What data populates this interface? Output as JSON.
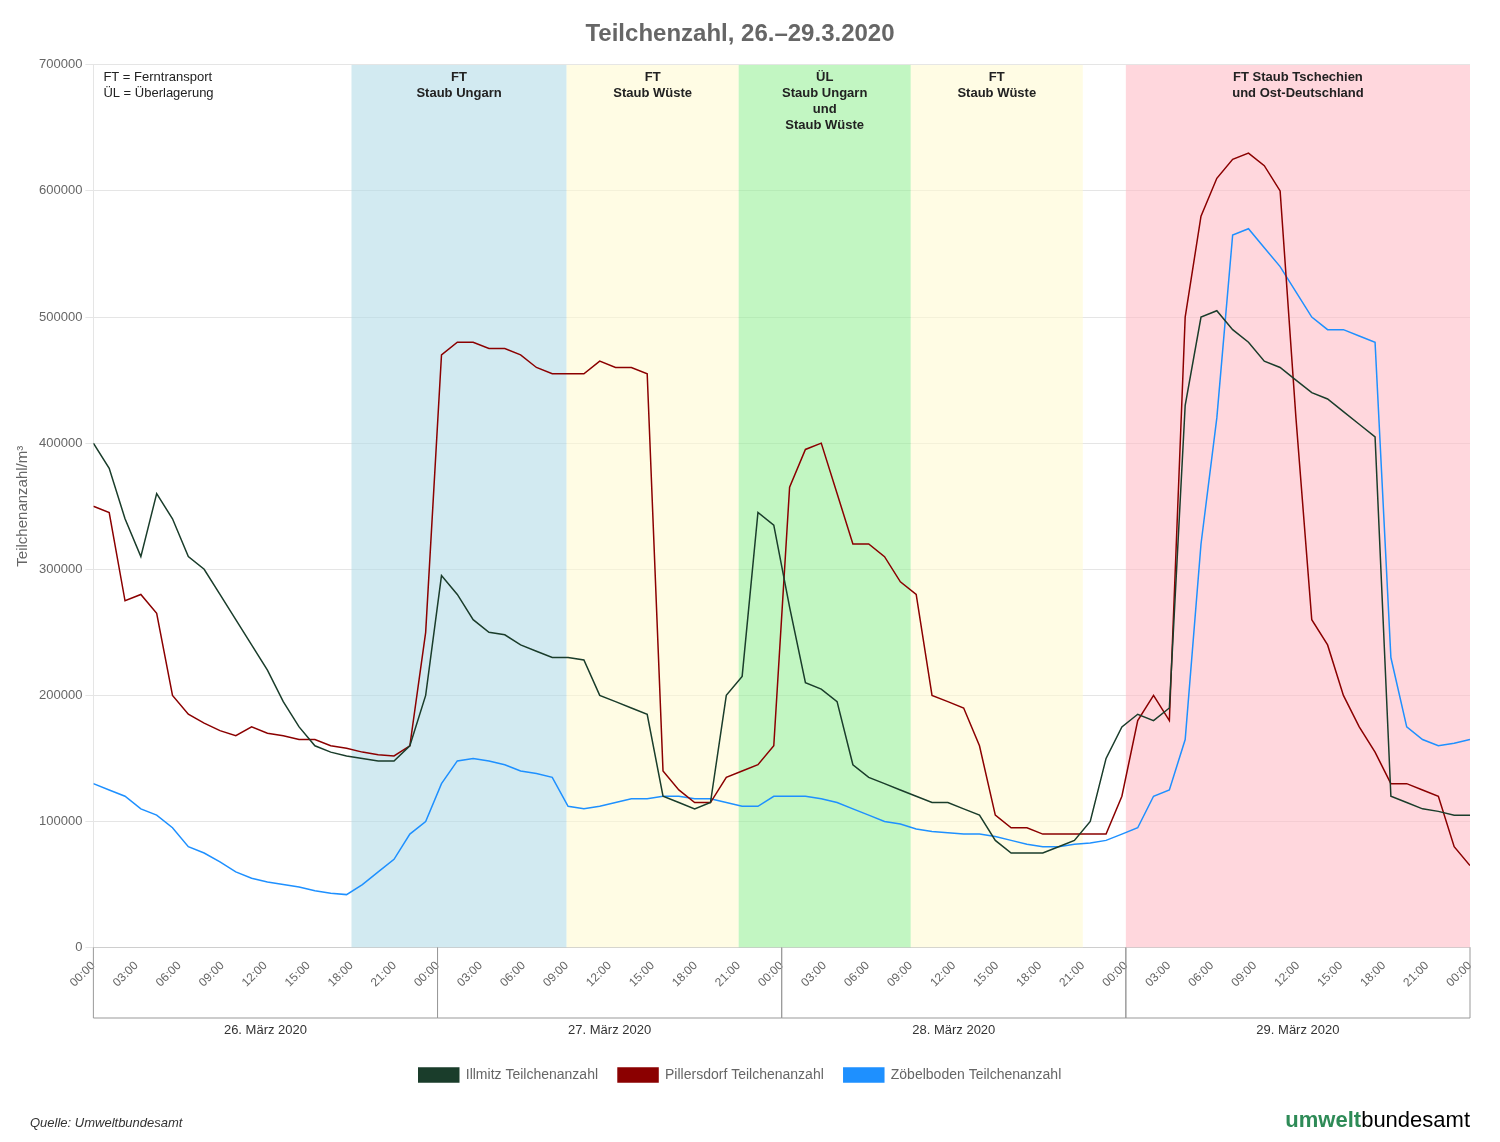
{
  "chart_data": {
    "type": "line",
    "title": "Teilchenzahl, 26.–29.3.2020",
    "ylabel": "Teilchenanzahl/m³",
    "x": [
      0,
      0.3678,
      0.7356,
      1.1034,
      1.4713,
      1.8391,
      2.2069,
      2.5747,
      2.9425,
      3.3103,
      3.6782,
      4.046,
      4.4138,
      4.7816,
      5.1494,
      5.5172,
      5.8851,
      6.2529,
      6.6207,
      6.9885,
      7.3563,
      7.7241,
      8.092,
      8.4598,
      8.8276,
      9.1954,
      9.5632,
      9.931,
      10.2989,
      10.6667,
      11.0345,
      11.4023,
      11.7701,
      12.1379,
      12.5057,
      12.8736,
      13.2414,
      13.6092,
      13.977,
      14.3448,
      14.7126,
      15.0805,
      15.4483,
      15.8161,
      16.1839,
      16.5517,
      16.9195,
      17.2874,
      17.6552,
      18.023,
      18.3908,
      18.7586,
      19.1264,
      19.4943,
      19.8621,
      20.2299,
      20.5977,
      20.9655,
      21.3333,
      21.7011,
      22.069,
      22.4368,
      22.8046,
      23.1724,
      23.5402,
      23.908,
      24.2759,
      24.6437,
      25.0115,
      25.3793,
      25.7471,
      26.1149,
      26.4828,
      26.8506,
      27.2184,
      27.5862,
      27.954,
      28.3218,
      28.6897,
      29.0575,
      29.4253,
      29.7931,
      30.1609,
      30.5287,
      30.8966,
      31.2644,
      31.6322,
      32
    ],
    "series": [
      {
        "name": "Illmitz Teilchenanzahl",
        "color": "#1a3d2b",
        "values": [
          400000,
          380000,
          340000,
          310000,
          360000,
          340000,
          310000,
          300000,
          280000,
          260000,
          240000,
          220000,
          195000,
          175000,
          160000,
          155000,
          152000,
          150000,
          148000,
          148000,
          160000,
          200000,
          295000,
          280000,
          260000,
          250000,
          248000,
          240000,
          235000,
          230000,
          230000,
          228000,
          200000,
          195000,
          190000,
          185000,
          120000,
          115000,
          110000,
          115000,
          200000,
          215000,
          345000,
          335000,
          270000,
          210000,
          205000,
          195000,
          145000,
          135000,
          130000,
          125000,
          120000,
          115000,
          115000,
          110000,
          105000,
          85000,
          75000,
          75000,
          75000,
          80000,
          85000,
          100000,
          150000,
          175000,
          185000,
          180000,
          190000,
          430000,
          500000,
          505000,
          490000,
          480000,
          465000,
          460000,
          450000,
          440000,
          435000,
          425000,
          415000,
          405000,
          120000,
          115000,
          110000,
          108000,
          105000,
          105000
        ]
      },
      {
        "name": "Pillersdorf Teilchenanzahl",
        "color": "#8b0000",
        "values": [
          350000,
          345000,
          275000,
          280000,
          265000,
          200000,
          185000,
          178000,
          172000,
          168000,
          175000,
          170000,
          168000,
          165000,
          165000,
          160000,
          158000,
          155000,
          153000,
          152000,
          160000,
          250000,
          470000,
          480000,
          480000,
          475000,
          475000,
          470000,
          460000,
          455000,
          455000,
          455000,
          465000,
          460000,
          460000,
          455000,
          140000,
          125000,
          115000,
          115000,
          135000,
          140000,
          145000,
          160000,
          365000,
          395000,
          400000,
          360000,
          320000,
          320000,
          310000,
          290000,
          280000,
          200000,
          195000,
          190000,
          160000,
          105000,
          95000,
          95000,
          90000,
          90000,
          90000,
          90000,
          90000,
          120000,
          180000,
          200000,
          180000,
          500000,
          580000,
          610000,
          625000,
          630000,
          620000,
          600000,
          420000,
          260000,
          240000,
          200000,
          175000,
          155000,
          130000,
          130000,
          125000,
          120000,
          80000,
          65000
        ]
      },
      {
        "name": "Zöbelboden Teilchenanzahl",
        "color": "#1e90ff",
        "values": [
          130000,
          125000,
          120000,
          110000,
          105000,
          95000,
          80000,
          75000,
          68000,
          60000,
          55000,
          52000,
          50000,
          48000,
          45000,
          43000,
          42000,
          50000,
          60000,
          70000,
          90000,
          100000,
          130000,
          148000,
          150000,
          148000,
          145000,
          140000,
          138000,
          135000,
          112000,
          110000,
          112000,
          115000,
          118000,
          118000,
          120000,
          120000,
          118000,
          118000,
          115000,
          112000,
          112000,
          120000,
          120000,
          120000,
          118000,
          115000,
          110000,
          105000,
          100000,
          98000,
          94000,
          92000,
          91000,
          90000,
          90000,
          88000,
          85000,
          82000,
          80000,
          80000,
          82000,
          83000,
          85000,
          90000,
          95000,
          120000,
          125000,
          165000,
          320000,
          420000,
          565000,
          570000,
          555000,
          540000,
          520000,
          500000,
          490000,
          490000,
          485000,
          480000,
          230000,
          175000,
          165000,
          160000,
          162000,
          165000
        ]
      }
    ],
    "xlim": [
      0,
      32
    ],
    "xticks": [
      {
        "value": 0,
        "label": "00:00"
      },
      {
        "value": 1,
        "label": "03:00"
      },
      {
        "value": 2,
        "label": "06:00"
      },
      {
        "value": 3,
        "label": "09:00"
      },
      {
        "value": 4,
        "label": "12:00"
      },
      {
        "value": 5,
        "label": "15:00"
      },
      {
        "value": 6,
        "label": "18:00"
      },
      {
        "value": 7,
        "label": "21:00"
      },
      {
        "value": 8,
        "label": "00:00"
      },
      {
        "value": 9,
        "label": "03:00"
      },
      {
        "value": 10,
        "label": "06:00"
      },
      {
        "value": 11,
        "label": "09:00"
      },
      {
        "value": 12,
        "label": "12:00"
      },
      {
        "value": 13,
        "label": "15:00"
      },
      {
        "value": 14,
        "label": "18:00"
      },
      {
        "value": 15,
        "label": "21:00"
      },
      {
        "value": 16,
        "label": "00:00"
      },
      {
        "value": 17,
        "label": "03:00"
      },
      {
        "value": 18,
        "label": "06:00"
      },
      {
        "value": 19,
        "label": "09:00"
      },
      {
        "value": 20,
        "label": "12:00"
      },
      {
        "value": 21,
        "label": "15:00"
      },
      {
        "value": 22,
        "label": "18:00"
      },
      {
        "value": 23,
        "label": "21:00"
      },
      {
        "value": 24,
        "label": "00:00"
      },
      {
        "value": 25,
        "label": "03:00"
      },
      {
        "value": 26,
        "label": "06:00"
      },
      {
        "value": 27,
        "label": "09:00"
      },
      {
        "value": 28,
        "label": "12:00"
      },
      {
        "value": 29,
        "label": "15:00"
      },
      {
        "value": 30,
        "label": "18:00"
      },
      {
        "value": 31,
        "label": "21:00"
      },
      {
        "value": 32,
        "label": "00:00"
      }
    ],
    "ylim": [
      0,
      700000
    ],
    "yticks": [
      0,
      100000,
      200000,
      300000,
      400000,
      500000,
      600000,
      700000
    ],
    "grid": "y",
    "legend": "bottom",
    "bands": [
      {
        "x_start": 6,
        "x_end": 11,
        "color": "#ADD8E6",
        "label": "FT\nStaub Ungarn"
      },
      {
        "x_start": 11,
        "x_end": 15,
        "color": "#FFFACD",
        "label": "FT\nStaub Wüste"
      },
      {
        "x_start": 15,
        "x_end": 19,
        "color": "#90EE90",
        "label": "ÜL\nStaub Ungarn\nund\nStaub Wüste"
      },
      {
        "x_start": 19,
        "x_end": 23,
        "color": "#FFFACD",
        "label": "FT\nStaub Wüste"
      },
      {
        "x_start": 24,
        "x_end": 32,
        "color": "#FFB6C1",
        "label": "FT Staub Tschechien\nund Ost-Deutschland"
      }
    ],
    "days": [
      {
        "x_start": 0,
        "x_end": 8,
        "label": "26. März 2020"
      },
      {
        "x_start": 8,
        "x_end": 16,
        "label": "27. März 2020"
      },
      {
        "x_start": 16,
        "x_end": 24,
        "label": "28. März 2020"
      },
      {
        "x_start": 24,
        "x_end": 32,
        "label": "29. März 2020"
      }
    ],
    "annotations": [
      "FT = Ferntransport\nÜL = Überlagerung"
    ],
    "source": "Quelle: Umweltbundesamt",
    "logo": [
      {
        "text": "umwelt",
        "color": "#2e8b57"
      },
      {
        "text": "bundesamt",
        "color": "#000000"
      }
    ]
  }
}
